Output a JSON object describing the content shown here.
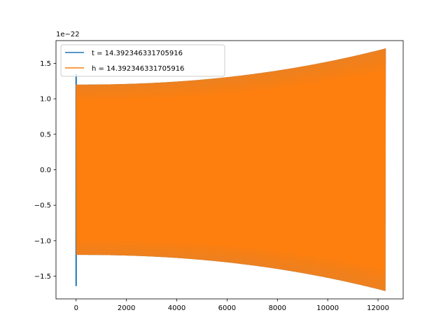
{
  "chart_data": {
    "type": "line",
    "title": "",
    "xlabel": "",
    "ylabel": "",
    "y_offset_label": "1e−22",
    "xlim": [
      -800,
      13000
    ],
    "ylim": [
      -1.82,
      1.82
    ],
    "x_ticks": [
      0,
      2000,
      4000,
      6000,
      8000,
      10000,
      12000
    ],
    "x_tick_labels": [
      "0",
      "2000",
      "4000",
      "6000",
      "8000",
      "10000",
      "12000"
    ],
    "y_ticks": [
      -1.5,
      -1.0,
      -0.5,
      0.0,
      0.5,
      1.0,
      1.5
    ],
    "y_tick_labels": [
      "−1.5",
      "−1.0",
      "−0.5",
      "0.0",
      "0.5",
      "1.0",
      "1.5"
    ],
    "grid": false,
    "legend_position": "top-left",
    "series": [
      {
        "name": "t = 14.392346331705916",
        "color": "#1f77b4",
        "x_range": [
          0,
          12300
        ],
        "envelope_start": 1.2,
        "envelope_end": 1.71,
        "initial_spike": [
          1.35,
          -1.64
        ]
      },
      {
        "name": "h = 14.392346331705916",
        "color": "#ff7f0e",
        "x_range": [
          0,
          12300
        ],
        "envelope_start": 1.2,
        "envelope_end": 1.71
      }
    ]
  }
}
